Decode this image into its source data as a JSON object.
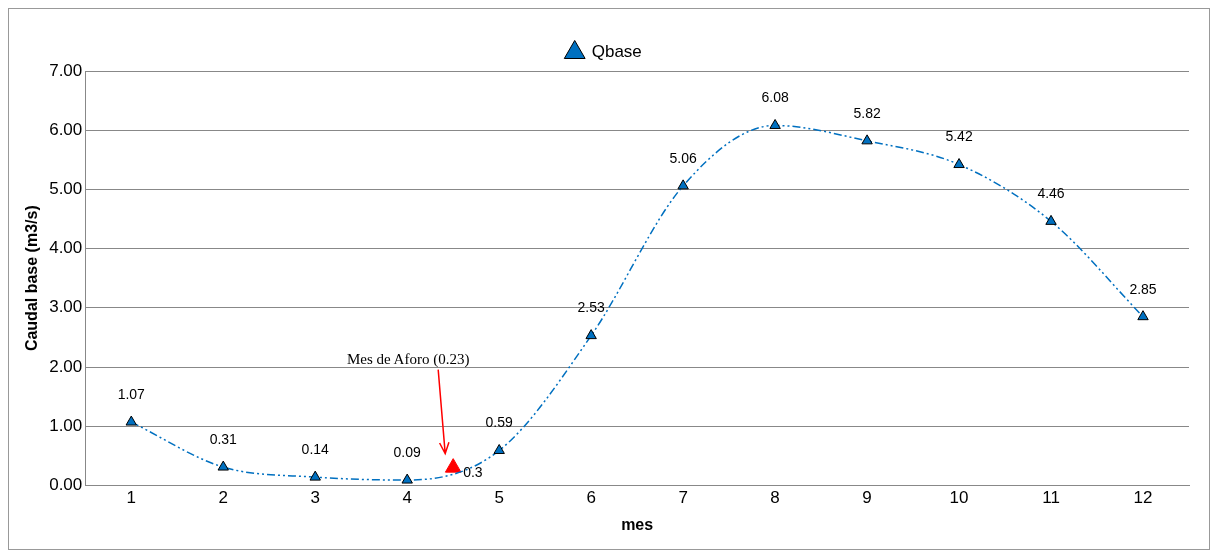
{
  "chart_data": {
    "type": "line",
    "xlabel": "mes",
    "ylabel": "Caudal base (m3/s)",
    "x": [
      1,
      2,
      3,
      4,
      5,
      6,
      7,
      8,
      9,
      10,
      11,
      12
    ],
    "series": [
      {
        "name": "Qbase",
        "color": "#0070c0",
        "values": [
          1.07,
          0.31,
          0.14,
          0.09,
          0.59,
          2.53,
          5.06,
          6.08,
          5.82,
          5.42,
          4.46,
          2.85
        ],
        "marker": "triangle",
        "line_style": "dashed"
      },
      {
        "type": "scatter",
        "color": "#ff0000",
        "x": [
          4.5
        ],
        "values": [
          0.3
        ],
        "value_labels": [
          "0.3"
        ],
        "marker": "triangle"
      }
    ],
    "xlim": [
      0.5,
      12.5
    ],
    "xticks": [
      1,
      2,
      3,
      4,
      5,
      6,
      7,
      8,
      9,
      10,
      11,
      12
    ],
    "ylim": [
      0,
      7
    ],
    "yticks": [
      {
        "value": 0,
        "label": "0.00"
      },
      {
        "value": 1,
        "label": "1.00"
      },
      {
        "value": 2,
        "label": "2.00"
      },
      {
        "value": 3,
        "label": "3.00"
      },
      {
        "value": 4,
        "label": "4.00"
      },
      {
        "value": 5,
        "label": "5.00"
      },
      {
        "value": 6,
        "label": "6.00"
      },
      {
        "value": 7,
        "label": "7.00"
      }
    ],
    "grid": "y",
    "legend": "top",
    "data_labels": true,
    "annotations": [
      "Mes de Aforo (0.23)"
    ]
  }
}
